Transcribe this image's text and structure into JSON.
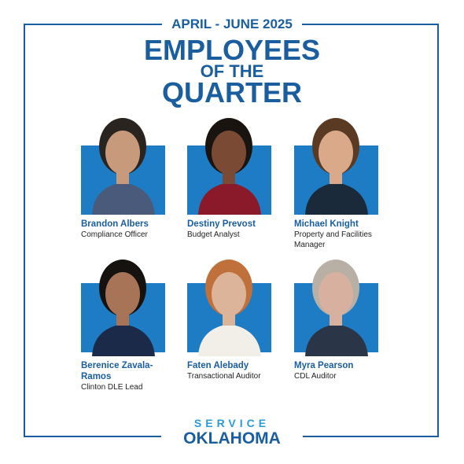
{
  "header": {
    "period": "APRIL - JUNE 2025",
    "title_lines": [
      "EMPLOYEES",
      "OF THE",
      "QUARTER"
    ]
  },
  "employees": [
    {
      "name": "Brandon Albers",
      "role": "Compliance Officer"
    },
    {
      "name": "Destiny Prevost",
      "role": "Budget Analyst"
    },
    {
      "name": "Michael Knight",
      "role": "Property and Facilities Manager"
    },
    {
      "name": "Berenice Zavala-Ramos",
      "role": "Clinton DLE Lead"
    },
    {
      "name": "Faten Alebady",
      "role": "Transactional Auditor"
    },
    {
      "name": "Myra Pearson",
      "role": "CDL Auditor"
    }
  ],
  "footer": {
    "brand_top": "SERVICE",
    "brand_bottom": "OKLAHOMA"
  }
}
